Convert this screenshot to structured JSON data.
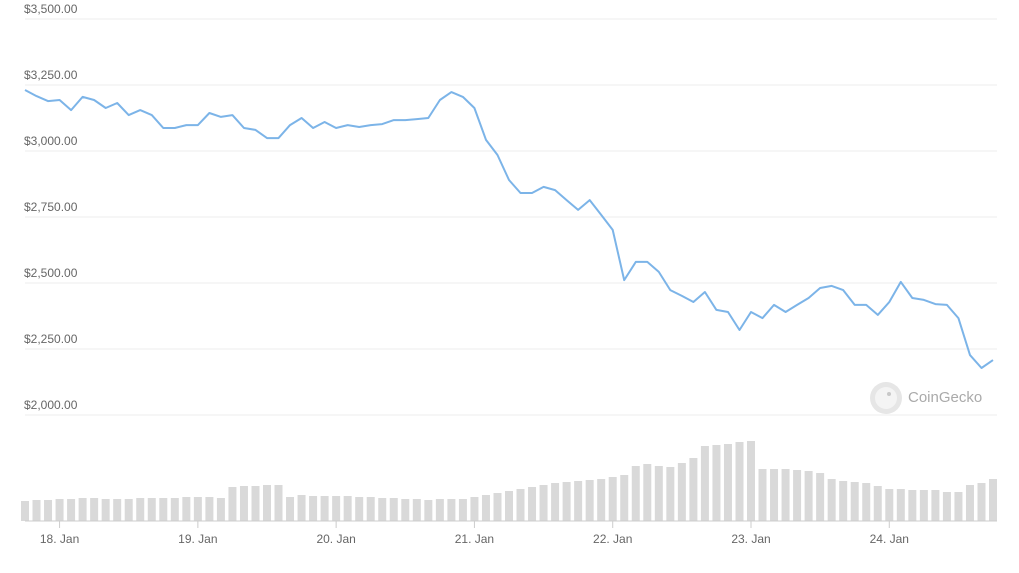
{
  "chart_data": {
    "type": "line",
    "watermark": "CoinGecko",
    "x": [
      -6,
      -4,
      -2,
      0,
      2,
      4,
      6,
      8,
      10,
      12,
      14,
      16,
      18,
      20,
      22,
      24,
      26,
      28,
      30,
      32,
      34,
      36,
      38,
      40,
      42,
      44,
      46,
      48,
      50,
      52,
      54,
      56,
      58,
      60,
      62,
      64,
      66,
      68,
      70,
      72,
      74,
      76,
      78,
      80,
      82,
      84,
      86,
      88,
      90,
      92,
      94,
      96,
      98,
      100,
      102,
      104,
      106,
      108,
      110,
      112,
      114,
      116,
      118,
      120,
      122,
      124,
      126,
      128,
      130,
      132,
      134,
      136,
      138,
      140,
      142,
      144,
      146,
      148,
      150,
      152,
      154,
      156,
      158,
      160,
      162
    ],
    "xlim": [
      -6,
      162
    ],
    "xticks": [
      {
        "value": 0,
        "label": "18. Jan"
      },
      {
        "value": 24,
        "label": "19. Jan"
      },
      {
        "value": 48,
        "label": "20. Jan"
      },
      {
        "value": 72,
        "label": "21. Jan"
      },
      {
        "value": 96,
        "label": "22. Jan"
      },
      {
        "value": 120,
        "label": "23. Jan"
      },
      {
        "value": 144,
        "label": "24. Jan"
      }
    ],
    "ylim": [
      2000,
      3500
    ],
    "yticks": [
      {
        "value": 2000,
        "label": "$2,000.00"
      },
      {
        "value": 2250,
        "label": "$2,250.00"
      },
      {
        "value": 2500,
        "label": "$2,500.00"
      },
      {
        "value": 2750,
        "label": "$2,750.00"
      },
      {
        "value": 3000,
        "label": "$3,000.00"
      },
      {
        "value": 3250,
        "label": "$3,250.00"
      },
      {
        "value": 3500,
        "label": "$3,500.00"
      }
    ],
    "grid": true,
    "series": [
      {
        "color": "#7cb4e8",
        "values": [
          3231,
          3208,
          3189,
          3193,
          3155,
          3205,
          3193,
          3163,
          3182,
          3136,
          3155,
          3136,
          3087,
          3087,
          3098,
          3098,
          3144,
          3129,
          3136,
          3087,
          3080,
          3049,
          3049,
          3098,
          3125,
          3087,
          3110,
          3087,
          3098,
          3091,
          3098,
          3102,
          3117,
          3117,
          3121,
          3125,
          3193,
          3223,
          3205,
          3163,
          3042,
          2985,
          2890,
          2841,
          2841,
          2864,
          2852,
          2814,
          2777,
          2814,
          2758,
          2701,
          2511,
          2580,
          2580,
          2542,
          2473,
          2451,
          2428,
          2466,
          2398,
          2390,
          2322,
          2390,
          2367,
          2417,
          2390,
          2417,
          2443,
          2481,
          2489,
          2473,
          2417,
          2417,
          2379,
          2428,
          2504,
          2443,
          2436,
          2420,
          2417,
          2367,
          2227,
          2178,
          2208
        ]
      }
    ],
    "volume": {
      "color": "#d9d9d9",
      "values": [
        20,
        21,
        21,
        22,
        22,
        23,
        23,
        22,
        22,
        22,
        23,
        23,
        23,
        23,
        24,
        24,
        24,
        23,
        34,
        35,
        35,
        36,
        36,
        24,
        26,
        25,
        25,
        25,
        25,
        24,
        24,
        23,
        23,
        22,
        22,
        21,
        22,
        22,
        22,
        24,
        26,
        28,
        30,
        32,
        34,
        36,
        38,
        39,
        40,
        41,
        42,
        44,
        46,
        55,
        57,
        55,
        54,
        58,
        63,
        75,
        76,
        77,
        79,
        80,
        52,
        52,
        52,
        51,
        50,
        48,
        42,
        40,
        39,
        38,
        35,
        32,
        32,
        31,
        31,
        31,
        29,
        29,
        36,
        38,
        42
      ]
    }
  }
}
